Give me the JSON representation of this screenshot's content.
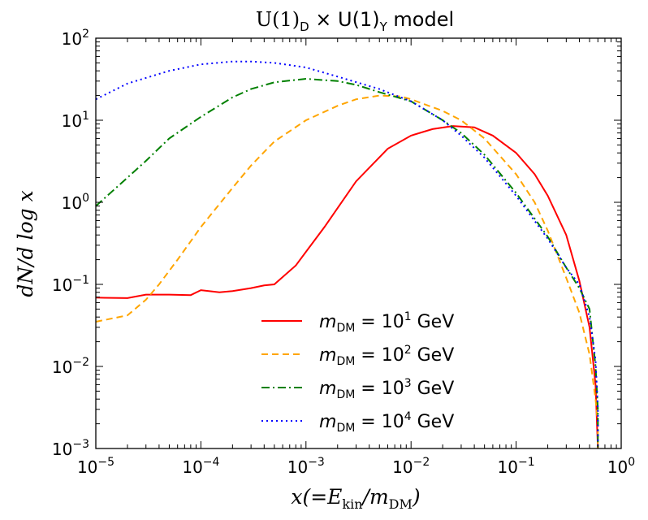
{
  "chart_data": {
    "type": "line",
    "title": {
      "main": "U(1)",
      "sub1": "D",
      "mid": " × U(1)",
      "sub2": "Y",
      "tail": " model"
    },
    "xlabel": "x(=E_kin/m_DM)",
    "ylabel": "dN/d log x",
    "x_scale": "log",
    "y_scale": "log",
    "xlim": [
      1e-05,
      1
    ],
    "ylim": [
      0.001,
      100
    ],
    "grid": false,
    "legend_position": "lower-center",
    "x_ticks": [
      {
        "base": "10",
        "exp": "−5"
      },
      {
        "base": "10",
        "exp": "−4"
      },
      {
        "base": "10",
        "exp": "−3"
      },
      {
        "base": "10",
        "exp": "−2"
      },
      {
        "base": "10",
        "exp": "−1"
      },
      {
        "base": "10",
        "exp": "0"
      }
    ],
    "y_ticks": [
      {
        "base": "10",
        "exp": "−3"
      },
      {
        "base": "10",
        "exp": "−2"
      },
      {
        "base": "10",
        "exp": "−1"
      },
      {
        "base": "10",
        "exp": "0"
      },
      {
        "base": "10",
        "exp": "1"
      },
      {
        "base": "10",
        "exp": "2"
      }
    ],
    "series": [
      {
        "name": "m_DM = 10^1 GeV",
        "label_exp": "1",
        "color": "#ff0000",
        "dash": "solid",
        "x": [
          1e-05,
          2e-05,
          3e-05,
          5e-05,
          8e-05,
          0.0001,
          0.00015,
          0.0002,
          0.0003,
          0.0004,
          0.0005,
          0.0008,
          0.0015,
          0.003,
          0.006,
          0.01,
          0.016,
          0.025,
          0.04,
          0.06,
          0.1,
          0.15,
          0.2,
          0.3,
          0.4,
          0.5,
          0.57,
          0.6
        ],
        "y": [
          0.069,
          0.068,
          0.075,
          0.075,
          0.074,
          0.085,
          0.08,
          0.083,
          0.09,
          0.097,
          0.1,
          0.17,
          0.5,
          1.8,
          4.5,
          6.5,
          7.8,
          8.5,
          8.2,
          6.5,
          4.0,
          2.2,
          1.2,
          0.4,
          0.11,
          0.03,
          0.006,
          0.001
        ]
      },
      {
        "name": "m_DM = 10^2 GeV",
        "label_exp": "2",
        "color": "#ffa500",
        "dash": "8,5",
        "x": [
          1e-05,
          2e-05,
          3e-05,
          4e-05,
          6e-05,
          0.0001,
          0.0002,
          0.0003,
          0.0005,
          0.001,
          0.002,
          0.003,
          0.005,
          0.008,
          0.01,
          0.02,
          0.03,
          0.05,
          0.1,
          0.15,
          0.2,
          0.3,
          0.4,
          0.5,
          0.57,
          0.6
        ],
        "y": [
          0.035,
          0.042,
          0.065,
          0.1,
          0.2,
          0.5,
          1.5,
          2.8,
          5.5,
          10,
          15,
          18,
          20,
          19.5,
          18,
          13,
          10,
          6,
          2.2,
          1.0,
          0.45,
          0.12,
          0.045,
          0.014,
          0.004,
          0.002
        ]
      },
      {
        "name": "m_DM = 10^3 GeV",
        "label_exp": "3",
        "color": "#008000",
        "dash": "10,4,2,4",
        "x": [
          1e-05,
          2e-05,
          3e-05,
          5e-05,
          0.0001,
          0.0002,
          0.0003,
          0.0005,
          0.001,
          0.002,
          0.003,
          0.005,
          0.01,
          0.02,
          0.03,
          0.05,
          0.1,
          0.2,
          0.3,
          0.4,
          0.5,
          0.57,
          0.6
        ],
        "y": [
          0.9,
          2.0,
          3.2,
          6,
          11,
          19,
          24,
          29,
          32,
          30,
          27,
          22,
          17,
          10,
          7,
          3.8,
          1.3,
          0.38,
          0.16,
          0.09,
          0.05,
          0.01,
          0.003
        ]
      },
      {
        "name": "m_DM = 10^4 GeV",
        "label_exp": "4",
        "color": "#0000ff",
        "dash": "2,4",
        "x": [
          1e-05,
          2e-05,
          5e-05,
          0.0001,
          0.0002,
          0.0003,
          0.0005,
          0.001,
          0.002,
          0.005,
          0.01,
          0.02,
          0.03,
          0.05,
          0.1,
          0.2,
          0.3,
          0.4,
          0.5,
          0.57,
          0.6
        ],
        "y": [
          18,
          28,
          40,
          48,
          52,
          52,
          50,
          44,
          34,
          24,
          17,
          10,
          6.5,
          3.5,
          1.2,
          0.36,
          0.16,
          0.1,
          0.04,
          0.012,
          0.003
        ]
      }
    ]
  },
  "legend": {
    "prefix": "m",
    "prefix_sub": "DM",
    "eq": " = 10",
    "unit": " GeV"
  },
  "axes": {
    "xlabel_parts": {
      "a": "x(=E",
      "a_sub": "kin",
      "b": "/m",
      "b_sub": "DM",
      "c": ")"
    },
    "ylabel_text": "dN/d log x"
  }
}
